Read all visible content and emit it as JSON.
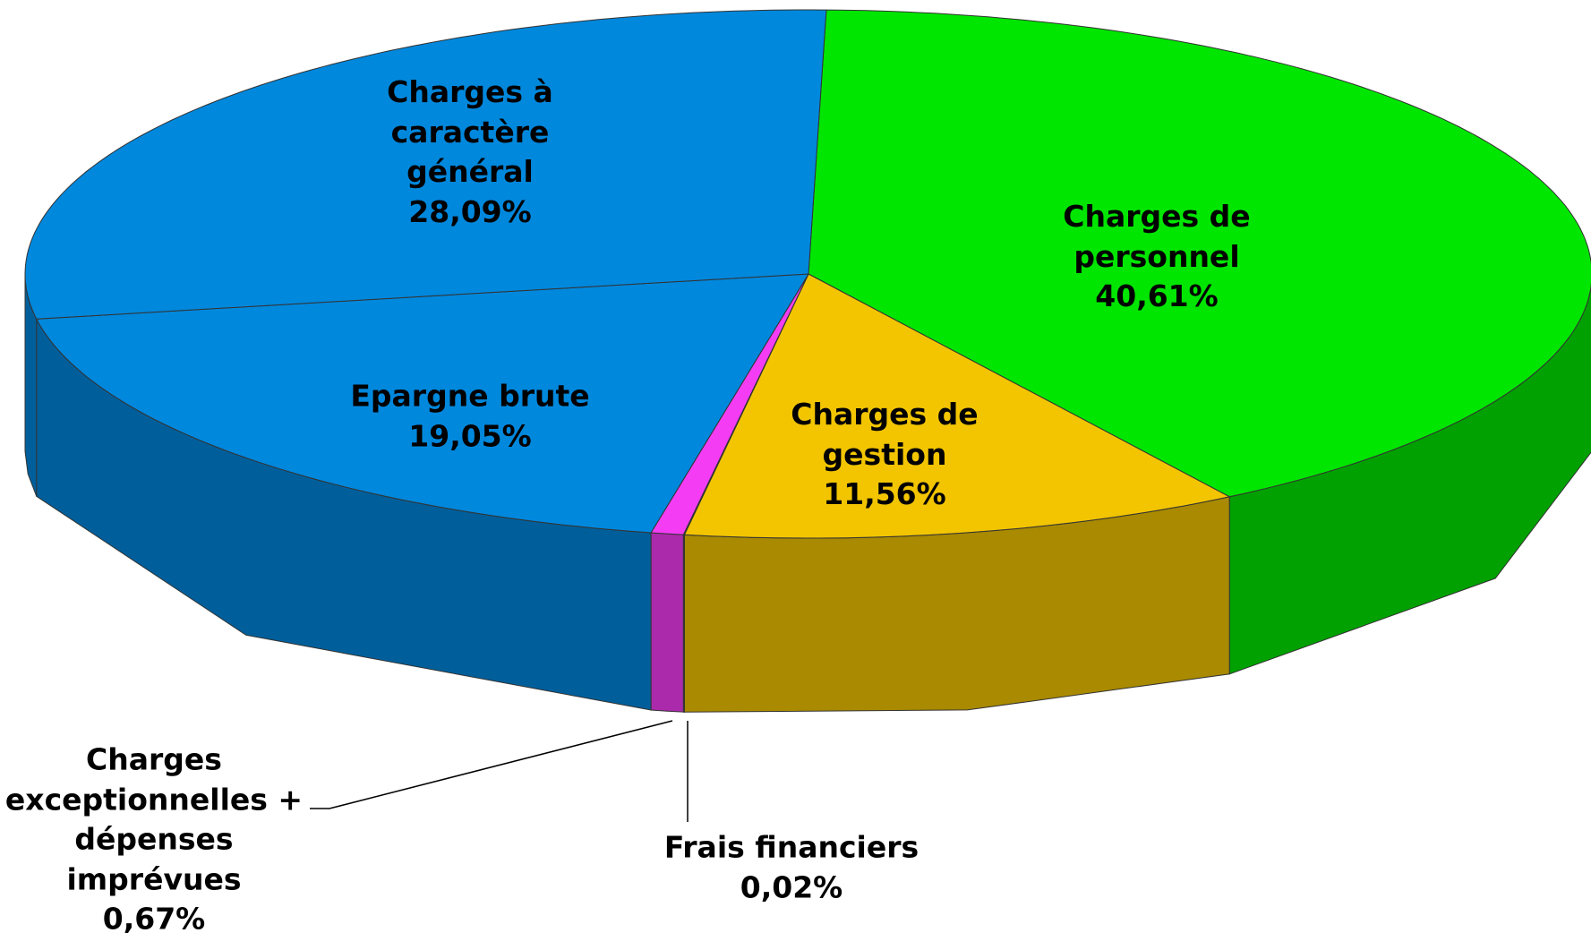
{
  "chart_data": {
    "type": "pie",
    "categories": [
      "Charges de personnel",
      "Charges de gestion",
      "Frais financiers",
      "Charges exceptionnelles + dépenses imprévues",
      "Epargne brute",
      "Charges à caractère général"
    ],
    "values": [
      40.61,
      11.56,
      0.02,
      0.67,
      19.05,
      28.09
    ],
    "value_labels": [
      "40,61%",
      "11,56%",
      "0,02%",
      "0,67%",
      "19,05%",
      "28,09%"
    ],
    "colors": [
      "#00e600",
      "#f2c500",
      "#70f0f0",
      "#f43cf4",
      "#0088dd",
      "#0088dd"
    ]
  }
}
